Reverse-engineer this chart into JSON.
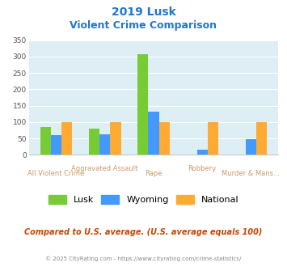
{
  "title_line1": "2019 Lusk",
  "title_line2": "Violent Crime Comparison",
  "categories": [
    "All Violent Crime",
    "Aggravated Assault",
    "Rape",
    "Robbery",
    "Murder & Mans..."
  ],
  "lusk": [
    85,
    80,
    307,
    0,
    0
  ],
  "wyoming": [
    60,
    62,
    132,
    15,
    47
  ],
  "national": [
    100,
    100,
    100,
    100,
    100
  ],
  "lusk_color": "#77cc33",
  "wyoming_color": "#4499ff",
  "national_color": "#ffaa33",
  "ylim": [
    0,
    350
  ],
  "yticks": [
    0,
    50,
    100,
    150,
    200,
    250,
    300,
    350
  ],
  "bg_color": "#ddeef5",
  "footer_text": "Compared to U.S. average. (U.S. average equals 100)",
  "copyright_text": "© 2025 CityRating.com - https://www.cityrating.com/crime-statistics/",
  "title_color": "#2277cc",
  "footer_color": "#cc4400",
  "copyright_color": "#888888",
  "label_color": "#cc9966",
  "top_labels": [
    "",
    "Aggravated Assault",
    "",
    "Robbery",
    ""
  ],
  "bot_labels": [
    "All Violent Crime",
    "",
    "Rape",
    "",
    "Murder & Mans..."
  ]
}
